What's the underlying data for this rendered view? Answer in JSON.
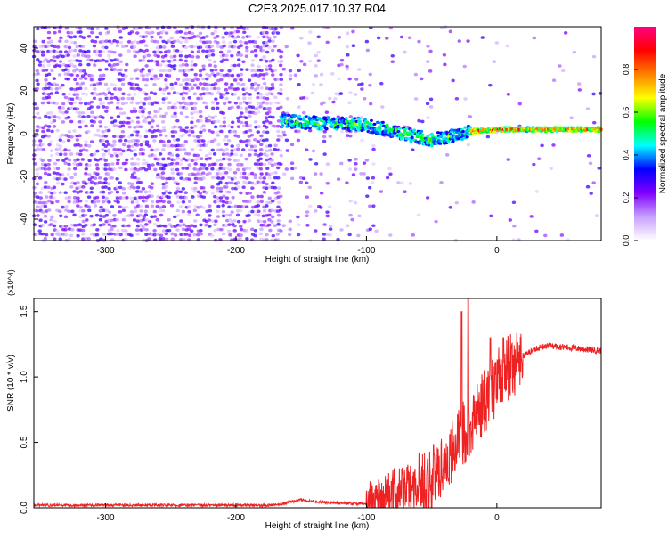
{
  "title": "C2E3.2025.017.10.37.R04",
  "chart_data": [
    {
      "type": "heatmap",
      "xlabel": "Height of straight line (km)",
      "ylabel": "Frequency (Hz)",
      "xlim": [
        -355,
        80
      ],
      "ylim": [
        -50,
        50
      ],
      "xticks": [
        -300,
        -200,
        -100,
        0
      ],
      "yticks": [
        -40,
        -20,
        0,
        20,
        40
      ],
      "colorbar": {
        "label": "Normalized spectral amplitude",
        "range": [
          0,
          1
        ],
        "ticks": [
          "0.0",
          "0.2",
          "0.4",
          "0.6",
          "0.8"
        ],
        "colormap": [
          "#ffffff",
          "#c8a0ff",
          "#8000ff",
          "#0000ff",
          "#00ffff",
          "#00ff00",
          "#ffff00",
          "#ff8000",
          "#ff0000",
          "#ff0080"
        ]
      },
      "features": {
        "broadband_noise_region_km": [
          -355,
          -165
        ],
        "ridge": [
          {
            "x": -165,
            "y": 6
          },
          {
            "x": -140,
            "y": 5
          },
          {
            "x": -100,
            "y": 4
          },
          {
            "x": -70,
            "y": 0
          },
          {
            "x": -50,
            "y": -3
          },
          {
            "x": -35,
            "y": -1
          },
          {
            "x": -20,
            "y": 1
          },
          {
            "x": 0,
            "y": 2
          },
          {
            "x": 80,
            "y": 2
          }
        ]
      }
    },
    {
      "type": "line",
      "xlabel": "Height of straight line (km)",
      "ylabel": "SNR (10 * v/v)",
      "yscale_label": "(x10^4)",
      "xlim": [
        -355,
        80
      ],
      "ylim": [
        0,
        1.6
      ],
      "xticks": [
        -300,
        -200,
        -100,
        0
      ],
      "yticks": [
        "0.0",
        "0.5",
        "1.0",
        "1.5"
      ],
      "color": "#ee2222",
      "series": [
        {
          "x": [
            -355,
            -320,
            -300,
            -250,
            -200,
            -170,
            -150,
            -130,
            -100,
            -90,
            -80,
            -70,
            -60,
            -50,
            -45,
            -40,
            -35,
            -30,
            -25,
            -20,
            -15,
            -10,
            -5,
            0,
            5,
            10,
            15,
            20,
            25,
            30,
            40,
            50,
            60,
            70,
            80
          ],
          "values": [
            0.02,
            0.02,
            0.02,
            0.02,
            0.02,
            0.02,
            0.06,
            0.04,
            0.03,
            0.08,
            0.12,
            0.15,
            0.18,
            0.22,
            0.28,
            0.35,
            0.42,
            0.5,
            0.58,
            0.65,
            0.72,
            0.8,
            0.88,
            0.95,
            1.02,
            1.08,
            1.12,
            1.16,
            1.19,
            1.22,
            1.24,
            1.23,
            1.22,
            1.21,
            1.2
          ],
          "peaks": [
            {
              "x": -27,
              "y": 1.5
            },
            {
              "x": -22,
              "y": 1.6
            },
            {
              "x": -5,
              "y": 1.3
            },
            {
              "x": 5,
              "y": 1.3
            }
          ]
        }
      ]
    }
  ]
}
